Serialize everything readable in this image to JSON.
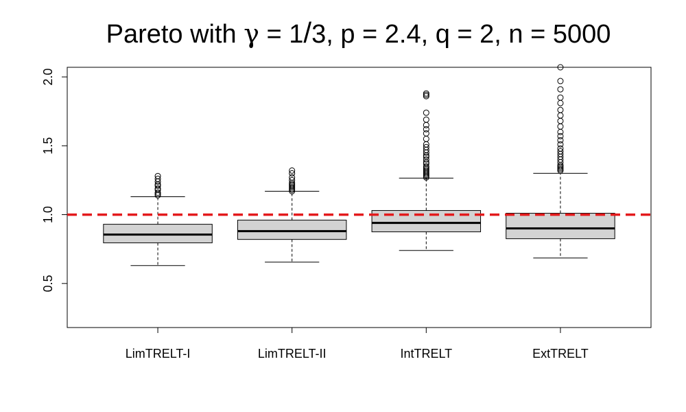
{
  "title": {
    "prefix": "Pareto with ",
    "gamma_symbol": "γ",
    "eq1": " = ",
    "num": "1",
    "slash": "/",
    "den": "3",
    "rest": ", p = 2.4, q = 2, n = 5000"
  },
  "chart_data": {
    "type": "boxplot",
    "title": "Pareto with γ = 1/3, p = 2.4, q = 2, n = 5000",
    "xlabel": "",
    "ylabel": "",
    "ylim": [
      0.18,
      2.07
    ],
    "yticks": [
      0.5,
      1.0,
      1.5,
      2.0
    ],
    "ytick_labels": [
      "0.5",
      "1.0",
      "1.5",
      "2.0"
    ],
    "reference_line": {
      "y": 1.0,
      "color": "#e31a1c",
      "style": "dashed"
    },
    "box_fill": "#d3d3d3",
    "categories": [
      "LimTRELT-I",
      "LimTRELT-II",
      "IntTRELT",
      "ExtTRELT"
    ],
    "boxes": [
      {
        "name": "LimTRELT-I",
        "whisker_low": 0.63,
        "q1": 0.795,
        "median": 0.855,
        "q3": 0.93,
        "whisker_high": 1.13,
        "outliers": [
          1.14,
          1.15,
          1.16,
          1.18,
          1.19,
          1.21,
          1.22,
          1.24,
          1.26,
          1.28
        ]
      },
      {
        "name": "LimTRELT-II",
        "whisker_low": 0.655,
        "q1": 0.82,
        "median": 0.88,
        "q3": 0.96,
        "whisker_high": 1.17,
        "outliers": [
          1.17,
          1.18,
          1.19,
          1.2,
          1.21,
          1.22,
          1.23,
          1.25,
          1.27,
          1.3,
          1.32
        ]
      },
      {
        "name": "IntTRELT",
        "whisker_low": 0.74,
        "q1": 0.875,
        "median": 0.94,
        "q3": 1.03,
        "whisker_high": 1.265,
        "outliers": [
          1.27,
          1.28,
          1.29,
          1.3,
          1.31,
          1.32,
          1.33,
          1.34,
          1.35,
          1.37,
          1.38,
          1.4,
          1.42,
          1.43,
          1.45,
          1.47,
          1.49,
          1.51,
          1.55,
          1.59,
          1.62,
          1.65,
          1.69,
          1.74,
          1.86,
          1.87,
          1.88
        ]
      },
      {
        "name": "ExtTRELT",
        "whisker_low": 0.685,
        "q1": 0.825,
        "median": 0.9,
        "q3": 1.01,
        "whisker_high": 1.3,
        "outliers": [
          1.32,
          1.33,
          1.34,
          1.35,
          1.36,
          1.38,
          1.4,
          1.42,
          1.44,
          1.46,
          1.48,
          1.51,
          1.54,
          1.57,
          1.6,
          1.64,
          1.68,
          1.72,
          1.76,
          1.81,
          1.85,
          1.91,
          1.97,
          2.07
        ]
      }
    ]
  }
}
